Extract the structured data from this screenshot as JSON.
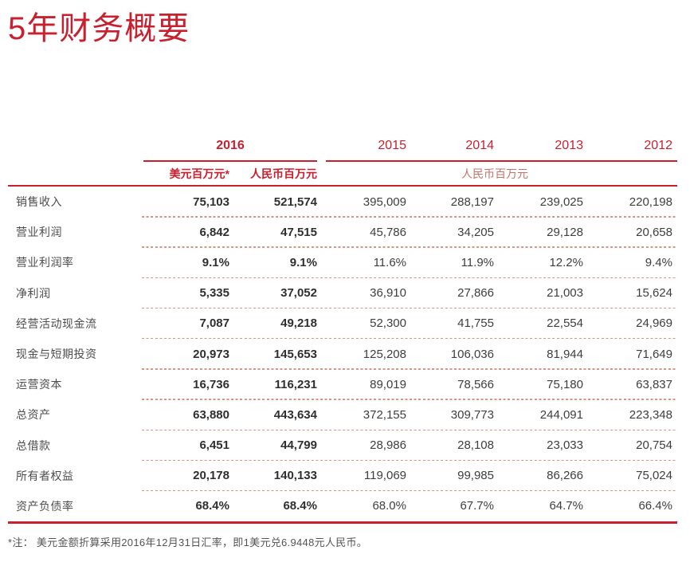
{
  "page": {
    "title": "5年财务概要"
  },
  "colors": {
    "brand_red": "#C8202F",
    "muted_red_group_label": "#C4736B",
    "dashed_separator": "#D9938B",
    "value_text": "#3E3E3E",
    "label_text": "#4D4D4D",
    "footnote_text": "#545454"
  },
  "table": {
    "group2016_label": "2016",
    "years": [
      "2015",
      "2014",
      "2013",
      "2012"
    ],
    "subheaders": {
      "usd": "美元百万元*",
      "rmb": "人民币百万元",
      "rmb_group": "人民币百万元"
    },
    "rows": [
      {
        "label": "销售收入",
        "values": [
          "75,103",
          "521,574",
          "395,009",
          "288,197",
          "239,025",
          "220,198"
        ]
      },
      {
        "label": "营业利润",
        "values": [
          "6,842",
          "47,515",
          "45,786",
          "34,205",
          "29,128",
          "20,658"
        ]
      },
      {
        "label": "营业利润率",
        "values": [
          "9.1%",
          "9.1%",
          "11.6%",
          "11.9%",
          "12.2%",
          "9.4%"
        ]
      },
      {
        "label": "净利润",
        "values": [
          "5,335",
          "37,052",
          "36,910",
          "27,866",
          "21,003",
          "15,624"
        ]
      },
      {
        "label": "经营活动现金流",
        "values": [
          "7,087",
          "49,218",
          "52,300",
          "41,755",
          "22,554",
          "24,969"
        ]
      },
      {
        "label": "现金与短期投资",
        "values": [
          "20,973",
          "145,653",
          "125,208",
          "106,036",
          "81,944",
          "71,649"
        ]
      },
      {
        "label": "运营资本",
        "values": [
          "16,736",
          "116,231",
          "89,019",
          "78,566",
          "75,180",
          "63,837"
        ]
      },
      {
        "label": "总资产",
        "values": [
          "63,880",
          "443,634",
          "372,155",
          "309,773",
          "244,091",
          "223,348"
        ]
      },
      {
        "label": "总借款",
        "values": [
          "6,451",
          "44,799",
          "28,986",
          "28,108",
          "23,033",
          "20,754"
        ]
      },
      {
        "label": "所有者权益",
        "values": [
          "20,178",
          "140,133",
          "119,069",
          "99,985",
          "86,266",
          "75,024"
        ]
      },
      {
        "label": "资产负债率",
        "values": [
          "68.4%",
          "68.4%",
          "68.0%",
          "67.7%",
          "64.7%",
          "66.4%"
        ]
      }
    ]
  },
  "footnote": "*注： 美元金额折算采用2016年12月31日汇率，即1美元兑6.9448元人民币。"
}
